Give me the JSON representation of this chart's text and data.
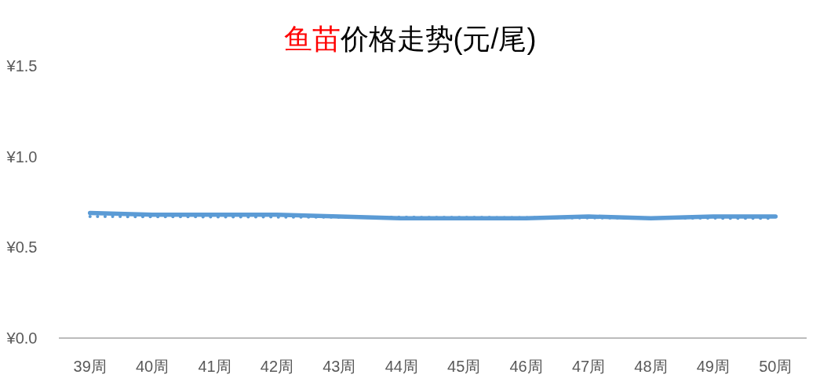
{
  "chart_data": {
    "type": "line",
    "title": "鱼苗价格走势(元/尾)",
    "categories": [
      "39周",
      "40周",
      "41周",
      "42周",
      "43周",
      "44周",
      "45周",
      "46周",
      "47周",
      "48周",
      "49周",
      "50周"
    ],
    "series": [
      {
        "color": "#5b9bd5",
        "line_style": "solid",
        "values": [
          0.69,
          0.68,
          0.68,
          0.68,
          0.67,
          0.66,
          0.66,
          0.66,
          0.67,
          0.66,
          0.67,
          0.67
        ]
      },
      {
        "color": "#5b9bd5",
        "line_style": "dotted",
        "x": [
          "39周",
          "50周"
        ],
        "values": [
          0.67,
          0.66
        ]
      }
    ],
    "ylim": [
      0,
      1.5
    ],
    "yticks": [
      {
        "value": 0,
        "label": "¥0.0"
      },
      {
        "value": 0.5,
        "label": "¥0.5"
      },
      {
        "value": 1,
        "label": "¥1.0"
      },
      {
        "value": 1.5,
        "label": "¥1.5"
      }
    ],
    "grid": false,
    "marker": "none"
  }
}
